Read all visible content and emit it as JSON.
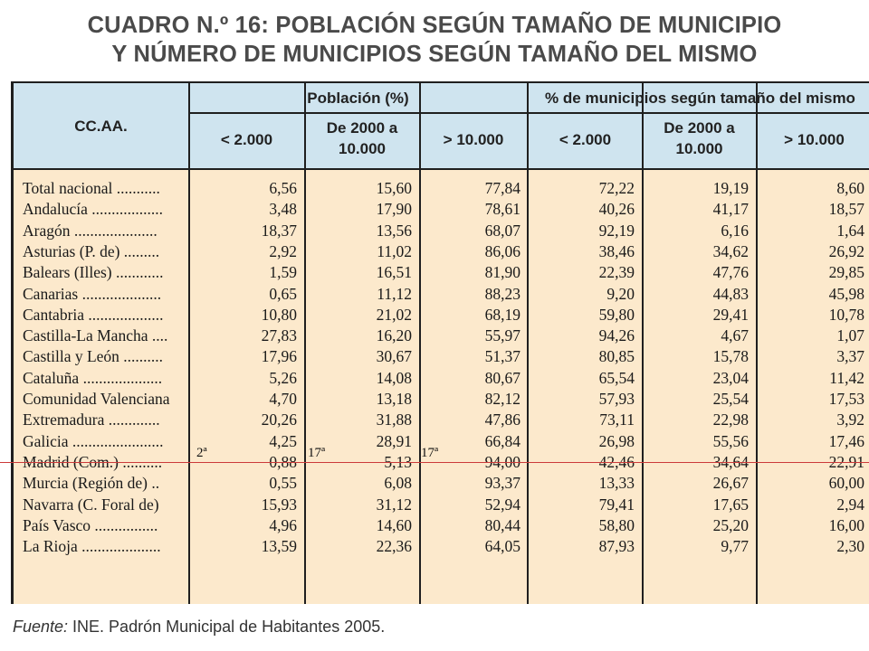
{
  "title_line1": "CUADRO N.º 16: POBLACIÓN SEGÚN TAMAÑO DE MUNICIPIO",
  "title_line2": "Y NÚMERO DE MUNICIPIOS SEGÚN TAMAÑO DEL MISMO",
  "header": {
    "region_col": "CC.AA.",
    "group1": "Población (%)",
    "group2": "% de municipios según tamaño del mismo",
    "sub": [
      "< 2.000",
      "De 2000 a 10.000",
      "> 10.000",
      "< 2.000",
      "De 2000 a 10.000",
      "> 10.000"
    ]
  },
  "rows": [
    {
      "label": "Total nacional ...........",
      "v": [
        "6,56",
        "15,60",
        "77,84",
        "72,22",
        "19,19",
        "8,60"
      ]
    },
    {
      "label": "Andalucía ..................",
      "v": [
        "3,48",
        "17,90",
        "78,61",
        "40,26",
        "41,17",
        "18,57"
      ]
    },
    {
      "label": "Aragón .....................",
      "v": [
        "18,37",
        "13,56",
        "68,07",
        "92,19",
        "6,16",
        "1,64"
      ]
    },
    {
      "label": "Asturias (P. de) .........",
      "v": [
        "2,92",
        "11,02",
        "86,06",
        "38,46",
        "34,62",
        "26,92"
      ]
    },
    {
      "label": "Balears (Illes) ............",
      "v": [
        "1,59",
        "16,51",
        "81,90",
        "22,39",
        "47,76",
        "29,85"
      ]
    },
    {
      "label": "Canarias ....................",
      "v": [
        "0,65",
        "11,12",
        "88,23",
        "9,20",
        "44,83",
        "45,98"
      ]
    },
    {
      "label": "Cantabria ...................",
      "v": [
        "10,80",
        "21,02",
        "68,19",
        "59,80",
        "29,41",
        "10,78"
      ]
    },
    {
      "label": "Castilla-La Mancha ....",
      "v": [
        "27,83",
        "16,20",
        "55,97",
        "94,26",
        "4,67",
        "1,07"
      ]
    },
    {
      "label": "Castilla y León ..........",
      "v": [
        "17,96",
        "30,67",
        "51,37",
        "80,85",
        "15,78",
        "3,37"
      ]
    },
    {
      "label": "Cataluña ....................",
      "v": [
        "5,26",
        "14,08",
        "80,67",
        "65,54",
        "23,04",
        "11,42"
      ]
    },
    {
      "label": "Comunidad Valenciana",
      "v": [
        "4,70",
        "13,18",
        "82,12",
        "57,93",
        "25,54",
        "17,53"
      ]
    },
    {
      "label": "Extremadura .............",
      "v": [
        "20,26",
        "31,88",
        "47,86",
        "73,11",
        "22,98",
        "3,92"
      ]
    },
    {
      "label": "Galicia .......................",
      "v": [
        "4,25",
        "28,91",
        "66,84",
        "26,98",
        "55,56",
        "17,46"
      ]
    },
    {
      "label": "Madrid (Com.) ..........",
      "v": [
        "0,88",
        "5,13",
        "94,00",
        "42,46",
        "34,64",
        "22,91"
      ]
    },
    {
      "label": "Murcia (Región de) ..",
      "v": [
        "0,55",
        "6,08",
        "93,37",
        "13,33",
        "26,67",
        "60,00"
      ]
    },
    {
      "label": "Navarra (C. Foral de)",
      "v": [
        "15,93",
        "31,12",
        "52,94",
        "79,41",
        "17,65",
        "2,94"
      ]
    },
    {
      "label": "País Vasco ................",
      "v": [
        "4,96",
        "14,60",
        "80,44",
        "58,80",
        "25,20",
        "16,00"
      ]
    },
    {
      "label": "La Rioja ....................",
      "v": [
        "13,59",
        "22,36",
        "64,05",
        "87,93",
        "9,77",
        "2,30"
      ]
    }
  ],
  "annotations": [
    "2ª",
    "17ª",
    "17ª"
  ],
  "source_label": "Fuente:",
  "source_text": " INE. Padrón Municipal de Habitantes 2005.",
  "colors": {
    "header_bg": "#cfe4ef",
    "body_bg": "#fce9cc",
    "annotation_line": "#cc3a3a"
  }
}
